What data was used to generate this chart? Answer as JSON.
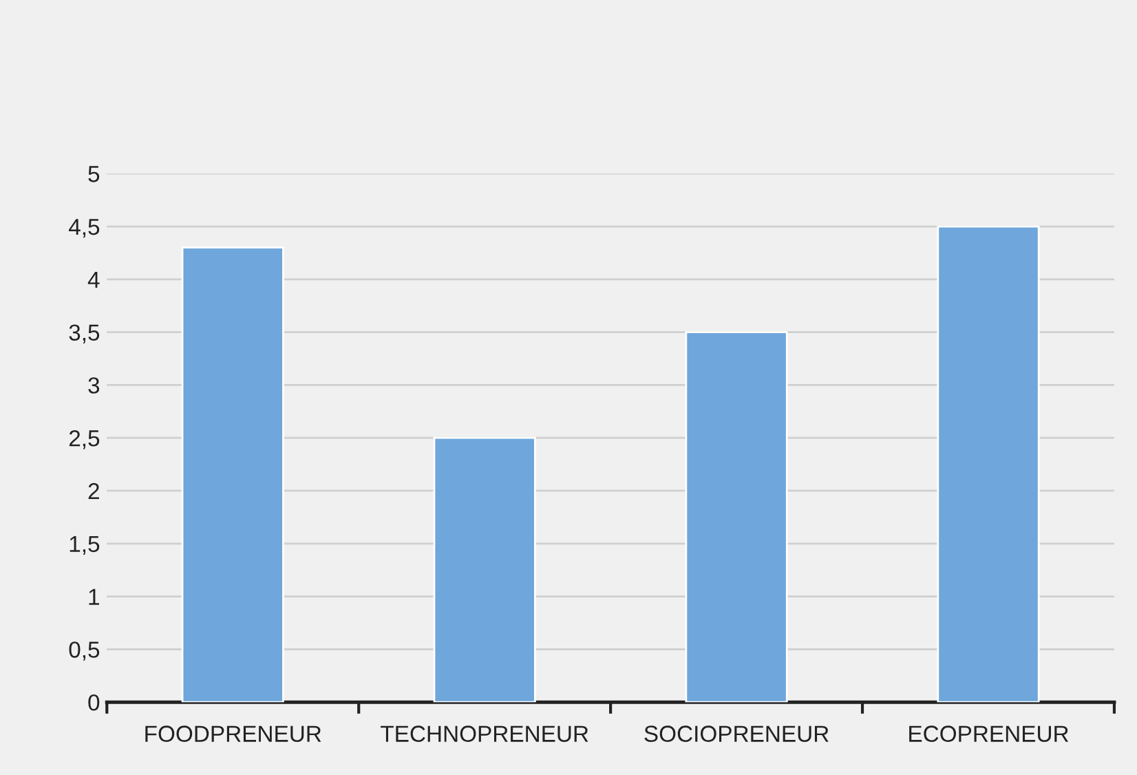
{
  "chart_data": {
    "type": "bar",
    "categories": [
      "FOODPRENEUR",
      "TECHNOPRENEUR",
      "SOCIOPRENEUR",
      "ECOPRENEUR"
    ],
    "values": [
      4.3,
      2.5,
      3.5,
      4.5
    ],
    "color": "#6fa6db",
    "ylim": [
      0,
      5
    ],
    "yticks": [
      0,
      {
        "value": 0.5,
        "label": "0,5"
      },
      1,
      {
        "value": 1.5,
        "label": "1,5"
      },
      2,
      {
        "value": 2.5,
        "label": "2,5"
      },
      3,
      {
        "value": 3.5,
        "label": "3,5"
      },
      4,
      {
        "value": 4.5,
        "label": "4,5"
      },
      5
    ],
    "grid": "y",
    "legend": false
  }
}
